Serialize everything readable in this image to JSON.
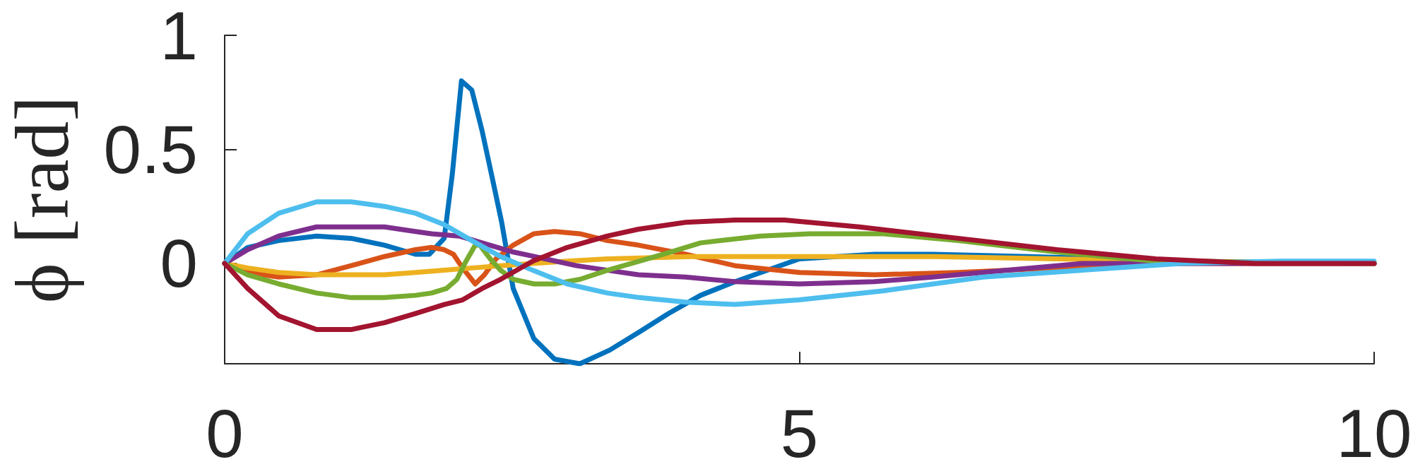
{
  "chart_data": {
    "type": "line",
    "ylabel": "ϕ [rad]",
    "xlim": [
      0,
      10
    ],
    "ylim": [
      -0.44,
      1
    ],
    "xticks": [
      0,
      5,
      10
    ],
    "yticks": [
      0,
      0.5,
      1
    ],
    "series": [
      {
        "color": "#0072bd",
        "x": [
          0,
          0.2,
          0.47,
          0.8,
          1.1,
          1.39,
          1.66,
          1.78,
          1.91,
          1.98,
          2.06,
          2.15,
          2.24,
          2.33,
          2.41,
          2.51,
          2.69,
          2.87,
          3.09,
          3.35,
          3.61,
          3.86,
          4.14,
          4.44,
          5,
          5.65,
          6.16,
          7,
          8.3,
          10
        ],
        "values": [
          0,
          0.07,
          0.1,
          0.12,
          0.11,
          0.08,
          0.04,
          0.04,
          0.11,
          0.39,
          0.8,
          0.76,
          0.58,
          0.37,
          0.18,
          -0.11,
          -0.33,
          -0.42,
          -0.44,
          -0.38,
          -0.3,
          -0.22,
          -0.14,
          -0.08,
          0.02,
          0.04,
          0.04,
          0.03,
          0.01,
          0
        ]
      },
      {
        "color": "#d95319",
        "x": [
          0,
          0.2,
          0.47,
          0.8,
          1.1,
          1.39,
          1.66,
          1.8,
          1.91,
          1.99,
          2.07,
          2.18,
          2.26,
          2.36,
          2.51,
          2.69,
          2.87,
          3.09,
          3.33,
          3.6,
          4.01,
          4.44,
          5,
          5.65,
          6.38,
          7.24,
          7.89,
          10
        ],
        "values": [
          0,
          -0.04,
          -0.06,
          -0.05,
          -0.01,
          0.03,
          0.06,
          0.07,
          0.06,
          0.04,
          -0.02,
          -0.09,
          -0.05,
          0.02,
          0.08,
          0.13,
          0.14,
          0.13,
          0.1,
          0.08,
          0.04,
          -0.01,
          -0.04,
          -0.05,
          -0.04,
          -0.02,
          0,
          0
        ]
      },
      {
        "color": "#edb120",
        "x": [
          0,
          0.2,
          0.47,
          0.8,
          1.1,
          1.39,
          1.66,
          1.91,
          2.15,
          2.4,
          2.68,
          2.98,
          3.33,
          4.07,
          5,
          6.16,
          7.24,
          8.32,
          10
        ],
        "values": [
          0,
          -0.02,
          -0.04,
          -0.05,
          -0.05,
          -0.05,
          -0.04,
          -0.03,
          -0.02,
          -0.01,
          0,
          0.01,
          0.02,
          0.03,
          0.03,
          0.03,
          0.02,
          0.01,
          0
        ]
      },
      {
        "color": "#7e2f8e",
        "x": [
          0,
          0.2,
          0.47,
          0.8,
          1.1,
          1.39,
          1.66,
          1.8,
          2.04,
          2.24,
          2.51,
          2.79,
          3.06,
          3.33,
          3.6,
          4.01,
          4.44,
          5,
          5.65,
          6.16,
          6.81,
          7.46,
          10
        ],
        "values": [
          0,
          0.06,
          0.12,
          0.16,
          0.16,
          0.16,
          0.14,
          0.13,
          0.12,
          0.09,
          0.05,
          0.02,
          -0.01,
          -0.03,
          -0.05,
          -0.06,
          -0.08,
          -0.09,
          -0.08,
          -0.06,
          -0.03,
          0,
          0
        ]
      },
      {
        "color": "#77ac30",
        "x": [
          0,
          0.2,
          0.47,
          0.8,
          1.1,
          1.39,
          1.66,
          1.8,
          1.93,
          2.02,
          2.1,
          2.18,
          2.22,
          2.31,
          2.4,
          2.51,
          2.69,
          2.87,
          3.09,
          3.33,
          3.61,
          3.88,
          4.14,
          4.66,
          5.09,
          5.73,
          6.38,
          7.24,
          8.1,
          10
        ],
        "values": [
          0,
          -0.05,
          -0.09,
          -0.13,
          -0.15,
          -0.15,
          -0.14,
          -0.13,
          -0.11,
          -0.07,
          0.01,
          0.08,
          0.08,
          0.02,
          -0.03,
          -0.07,
          -0.09,
          -0.09,
          -0.07,
          -0.03,
          0.01,
          0.05,
          0.09,
          0.12,
          0.13,
          0.13,
          0.1,
          0.05,
          0.01,
          0
        ]
      },
      {
        "color": "#4dbeee",
        "x": [
          0,
          0.2,
          0.47,
          0.8,
          1.1,
          1.39,
          1.66,
          1.91,
          2.15,
          2.4,
          2.68,
          2.98,
          3.33,
          3.61,
          4.01,
          4.44,
          5,
          5.73,
          6.6,
          7.46,
          8.32,
          9.18,
          10
        ],
        "values": [
          0,
          0.13,
          0.22,
          0.27,
          0.27,
          0.25,
          0.22,
          0.17,
          0.1,
          0.03,
          -0.03,
          -0.09,
          -0.13,
          -0.15,
          -0.17,
          -0.18,
          -0.16,
          -0.12,
          -0.06,
          -0.03,
          0,
          0.01,
          0.01
        ]
      },
      {
        "color": "#a2142f",
        "x": [
          0,
          0.2,
          0.47,
          0.8,
          1.1,
          1.39,
          1.66,
          1.91,
          2.07,
          2.24,
          2.4,
          2.68,
          2.98,
          3.33,
          3.6,
          4.01,
          4.44,
          4.87,
          5.52,
          6.38,
          7.24,
          8.1,
          8.97,
          10
        ],
        "values": [
          0,
          -0.11,
          -0.23,
          -0.29,
          -0.29,
          -0.26,
          -0.22,
          -0.18,
          -0.16,
          -0.11,
          -0.07,
          0.01,
          0.07,
          0.12,
          0.15,
          0.18,
          0.19,
          0.19,
          0.16,
          0.11,
          0.06,
          0.02,
          0,
          0
        ]
      }
    ]
  }
}
